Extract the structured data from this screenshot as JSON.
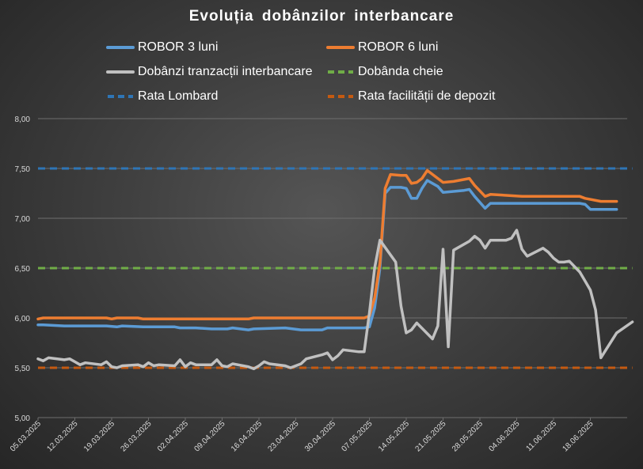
{
  "chart_data": {
    "type": "line",
    "title": "Evoluția dobânzilor interbancare",
    "xlabel": "",
    "ylabel": "",
    "ylim": [
      5.0,
      8.0
    ],
    "yticks": [
      "5,00",
      "5,50",
      "6,00",
      "6,50",
      "7,00",
      "7,50",
      "8,00"
    ],
    "grid": true,
    "legend_position": "top",
    "x_tick_labels": [
      "05.03.2025",
      "12.03.2025",
      "19.03.2025",
      "26.03.2025",
      "02.04.2025",
      "09.04.2025",
      "16.04.2025",
      "23.04.2025",
      "30.04.2025",
      "07.05.2025",
      "14.05.2025",
      "21.05.2025",
      "28.05.2025",
      "04.06.2025",
      "11.06.2025",
      "18.06.2025"
    ],
    "x_start": "05.03.2025",
    "x_end": "23.06.2025",
    "series": [
      {
        "name": "ROBOR 3 luni",
        "color": "#5b9bd5",
        "style": "solid",
        "points": [
          [
            "05.03.2025",
            5.93
          ],
          [
            "06.03.2025",
            5.93
          ],
          [
            "10.03.2025",
            5.92
          ],
          [
            "17.03.2025",
            5.92
          ],
          [
            "18.03.2025",
            5.92
          ],
          [
            "20.03.2025",
            5.91
          ],
          [
            "21.03.2025",
            5.92
          ],
          [
            "25.03.2025",
            5.91
          ],
          [
            "31.03.2025",
            5.91
          ],
          [
            "01.04.2025",
            5.9
          ],
          [
            "04.04.2025",
            5.9
          ],
          [
            "07.04.2025",
            5.89
          ],
          [
            "10.04.2025",
            5.89
          ],
          [
            "11.04.2025",
            5.9
          ],
          [
            "14.04.2025",
            5.88
          ],
          [
            "15.04.2025",
            5.89
          ],
          [
            "21.04.2025",
            5.9
          ],
          [
            "24.04.2025",
            5.88
          ],
          [
            "28.04.2025",
            5.88
          ],
          [
            "29.04.2025",
            5.9
          ],
          [
            "02.05.2025",
            5.9
          ],
          [
            "06.05.2025",
            5.9
          ],
          [
            "07.05.2025",
            5.91
          ],
          [
            "08.05.2025",
            6.1
          ],
          [
            "09.05.2025",
            6.5
          ],
          [
            "10.05.2025",
            7.25
          ],
          [
            "11.05.2025",
            7.31
          ],
          [
            "13.05.2025",
            7.31
          ],
          [
            "14.05.2025",
            7.3
          ],
          [
            "15.05.2025",
            7.2
          ],
          [
            "16.05.2025",
            7.2
          ],
          [
            "17.05.2025",
            7.3
          ],
          [
            "18.05.2025",
            7.38
          ],
          [
            "20.05.2025",
            7.32
          ],
          [
            "21.05.2025",
            7.26
          ],
          [
            "23.05.2025",
            7.27
          ],
          [
            "25.05.2025",
            7.28
          ],
          [
            "26.05.2025",
            7.29
          ],
          [
            "27.05.2025",
            7.22
          ],
          [
            "29.05.2025",
            7.1
          ],
          [
            "30.05.2025",
            7.15
          ],
          [
            "02.06.2025",
            7.15
          ],
          [
            "09.06.2025",
            7.15
          ],
          [
            "16.06.2025",
            7.15
          ],
          [
            "17.06.2025",
            7.14
          ],
          [
            "18.06.2025",
            7.09
          ],
          [
            "23.06.2025",
            7.09
          ]
        ]
      },
      {
        "name": "ROBOR 6 luni",
        "color": "#ed7d31",
        "style": "solid",
        "points": [
          [
            "05.03.2025",
            5.99
          ],
          [
            "06.03.2025",
            6.0
          ],
          [
            "18.03.2025",
            6.0
          ],
          [
            "19.03.2025",
            5.99
          ],
          [
            "20.03.2025",
            6.0
          ],
          [
            "24.03.2025",
            6.0
          ],
          [
            "25.03.2025",
            5.99
          ],
          [
            "31.03.2025",
            5.99
          ],
          [
            "10.04.2025",
            5.99
          ],
          [
            "14.04.2025",
            5.99
          ],
          [
            "15.04.2025",
            6.0
          ],
          [
            "01.05.2025",
            6.0
          ],
          [
            "05.05.2025",
            6.0
          ],
          [
            "06.05.2025",
            6.0
          ],
          [
            "07.05.2025",
            6.02
          ],
          [
            "08.05.2025",
            6.2
          ],
          [
            "09.05.2025",
            6.55
          ],
          [
            "10.05.2025",
            7.3
          ],
          [
            "11.05.2025",
            7.44
          ],
          [
            "13.05.2025",
            7.43
          ],
          [
            "14.05.2025",
            7.43
          ],
          [
            "15.05.2025",
            7.35
          ],
          [
            "16.05.2025",
            7.36
          ],
          [
            "17.05.2025",
            7.4
          ],
          [
            "18.05.2025",
            7.48
          ],
          [
            "20.05.2025",
            7.4
          ],
          [
            "21.05.2025",
            7.36
          ],
          [
            "23.05.2025",
            7.37
          ],
          [
            "25.05.2025",
            7.39
          ],
          [
            "26.05.2025",
            7.4
          ],
          [
            "27.05.2025",
            7.33
          ],
          [
            "29.05.2025",
            7.22
          ],
          [
            "30.05.2025",
            7.24
          ],
          [
            "02.06.2025",
            7.23
          ],
          [
            "05.06.2025",
            7.22
          ],
          [
            "16.06.2025",
            7.22
          ],
          [
            "17.06.2025",
            7.2
          ],
          [
            "20.06.2025",
            7.17
          ],
          [
            "23.06.2025",
            7.17
          ]
        ]
      },
      {
        "name": "Dobânzi tranzacții interbancare",
        "color": "#c0c0c0",
        "style": "solid",
        "points": [
          [
            "05.03.2025",
            5.59
          ],
          [
            "06.03.2025",
            5.57
          ],
          [
            "07.03.2025",
            5.6
          ],
          [
            "10.03.2025",
            5.58
          ],
          [
            "11.03.2025",
            5.59
          ],
          [
            "12.03.2025",
            5.56
          ],
          [
            "13.03.2025",
            5.53
          ],
          [
            "14.03.2025",
            5.55
          ],
          [
            "17.03.2025",
            5.53
          ],
          [
            "18.03.2025",
            5.56
          ],
          [
            "19.03.2025",
            5.51
          ],
          [
            "20.03.2025",
            5.5
          ],
          [
            "21.03.2025",
            5.52
          ],
          [
            "24.03.2025",
            5.53
          ],
          [
            "25.03.2025",
            5.51
          ],
          [
            "26.03.2025",
            5.55
          ],
          [
            "27.03.2025",
            5.52
          ],
          [
            "28.03.2025",
            5.53
          ],
          [
            "31.03.2025",
            5.52
          ],
          [
            "01.04.2025",
            5.58
          ],
          [
            "02.04.2025",
            5.51
          ],
          [
            "03.04.2025",
            5.55
          ],
          [
            "04.04.2025",
            5.53
          ],
          [
            "07.04.2025",
            5.53
          ],
          [
            "08.04.2025",
            5.58
          ],
          [
            "09.04.2025",
            5.52
          ],
          [
            "10.04.2025",
            5.51
          ],
          [
            "11.04.2025",
            5.54
          ],
          [
            "14.04.2025",
            5.51
          ],
          [
            "15.04.2025",
            5.49
          ],
          [
            "16.04.2025",
            5.52
          ],
          [
            "17.04.2025",
            5.56
          ],
          [
            "18.04.2025",
            5.54
          ],
          [
            "21.04.2025",
            5.52
          ],
          [
            "22.04.2025",
            5.5
          ],
          [
            "23.04.2025",
            5.52
          ],
          [
            "24.04.2025",
            5.54
          ],
          [
            "25.04.2025",
            5.59
          ],
          [
            "28.04.2025",
            5.63
          ],
          [
            "29.04.2025",
            5.65
          ],
          [
            "30.04.2025",
            5.58
          ],
          [
            "01.05.2025",
            5.62
          ],
          [
            "02.05.2025",
            5.68
          ],
          [
            "05.05.2025",
            5.66
          ],
          [
            "06.05.2025",
            5.66
          ],
          [
            "07.05.2025",
            6.05
          ],
          [
            "08.05.2025",
            6.5
          ],
          [
            "09.05.2025",
            6.78
          ],
          [
            "12.05.2025",
            6.56
          ],
          [
            "13.05.2025",
            6.12
          ],
          [
            "14.05.2025",
            5.85
          ],
          [
            "15.05.2025",
            5.88
          ],
          [
            "16.05.2025",
            5.95
          ],
          [
            "19.05.2025",
            5.79
          ],
          [
            "20.05.2025",
            5.92
          ],
          [
            "21.05.2025",
            6.69
          ],
          [
            "22.05.2025",
            5.71
          ],
          [
            "23.05.2025",
            6.68
          ],
          [
            "26.05.2025",
            6.77
          ],
          [
            "27.05.2025",
            6.82
          ],
          [
            "28.05.2025",
            6.78
          ],
          [
            "29.05.2025",
            6.7
          ],
          [
            "30.05.2025",
            6.78
          ],
          [
            "02.06.2025",
            6.78
          ],
          [
            "03.06.2025",
            6.8
          ],
          [
            "04.06.2025",
            6.88
          ],
          [
            "05.06.2025",
            6.69
          ],
          [
            "06.06.2025",
            6.62
          ],
          [
            "09.06.2025",
            6.7
          ],
          [
            "10.06.2025",
            6.66
          ],
          [
            "11.06.2025",
            6.6
          ],
          [
            "12.06.2025",
            6.56
          ],
          [
            "13.06.2025",
            6.56
          ],
          [
            "14.06.2025",
            6.57
          ],
          [
            "16.06.2025",
            6.46
          ],
          [
            "17.06.2025",
            6.37
          ],
          [
            "18.06.2025",
            6.28
          ],
          [
            "19.06.2025",
            6.08
          ],
          [
            "20.06.2025",
            5.6
          ],
          [
            "23.06.2025",
            5.85
          ],
          [
            "26.06.2025",
            5.96
          ]
        ]
      },
      {
        "name": "Dobânda cheie",
        "color": "#70ad47",
        "style": "dashed",
        "points": [
          [
            "05.03.2025",
            6.5
          ],
          [
            "26.06.2025",
            6.5
          ]
        ]
      },
      {
        "name": "Rata Lombard",
        "color": "#2e75b6",
        "style": "dashed",
        "points": [
          [
            "05.03.2025",
            7.5
          ],
          [
            "26.06.2025",
            7.5
          ]
        ]
      },
      {
        "name": "Rata facilității de depozit",
        "color": "#c55a11",
        "style": "dashed",
        "points": [
          [
            "05.03.2025",
            5.5
          ],
          [
            "26.06.2025",
            5.5
          ]
        ]
      }
    ]
  }
}
